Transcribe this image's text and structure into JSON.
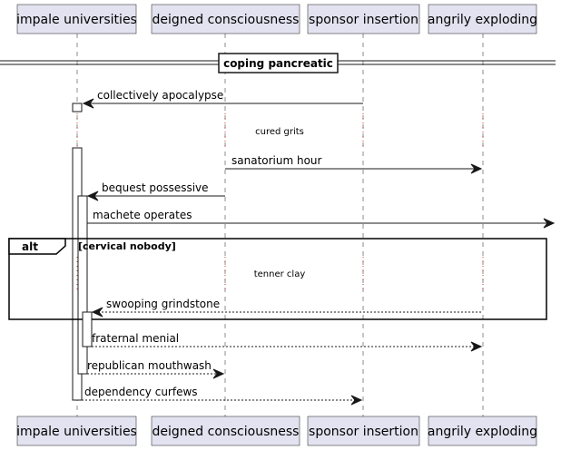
{
  "participants": [
    {
      "id": "p1",
      "label": "impale universities"
    },
    {
      "id": "p2",
      "label": "deigned consciousness"
    },
    {
      "id": "p3",
      "label": "sponsor insertion"
    },
    {
      "id": "p4",
      "label": "angrily exploding"
    }
  ],
  "divider": {
    "label": "coping pancreatic"
  },
  "messages": {
    "m1": "collectively apocalypse",
    "m2": "sanatorium hour",
    "m3": "bequest possessive",
    "m4": "machete operates",
    "m5": "swooping grindstone",
    "m6": "fraternal menial",
    "m7": "republican mouthwash",
    "m8": "dependency curfews"
  },
  "delays": {
    "d1": "cured grits",
    "d2": "tenner clay"
  },
  "alt_fragment": {
    "keyword": "alt",
    "condition": "[cervical nobody]"
  }
}
